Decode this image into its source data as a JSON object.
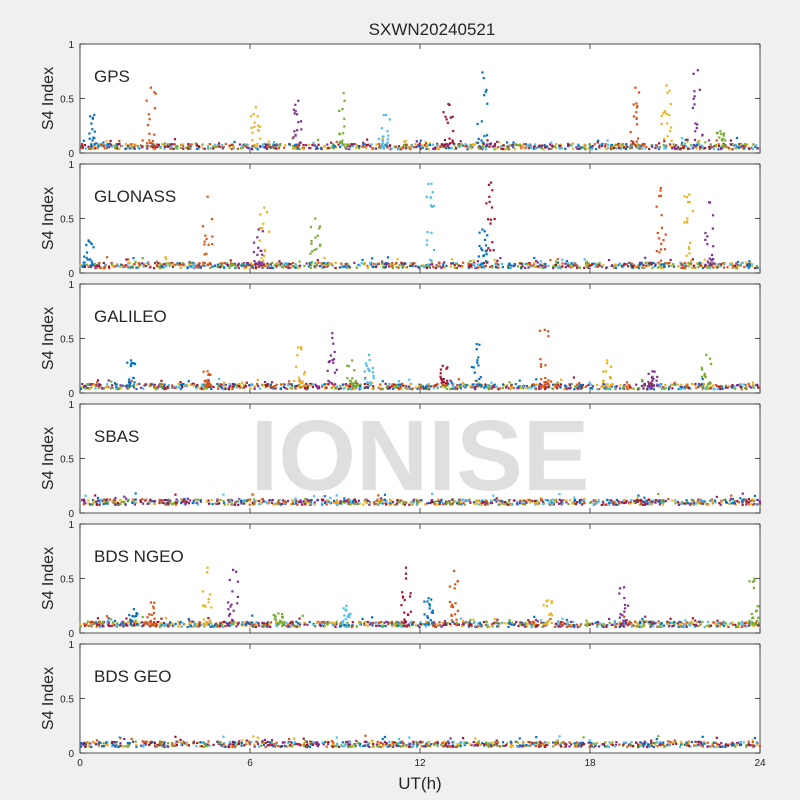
{
  "chart_data": {
    "type": "scatter",
    "title": "SXWN20240521",
    "watermark": "IONISE",
    "xlabel": "UT(h)",
    "ylabel": "S4 Index",
    "xlim": [
      0,
      24
    ],
    "ylim": [
      0,
      1
    ],
    "x_ticks": [
      0,
      6,
      12,
      18,
      24
    ],
    "y_ticks": [
      0,
      0.5,
      1
    ],
    "y_tick_labels": [
      "0",
      "0.5",
      "1"
    ],
    "grid": false,
    "colors": [
      "#0072bd",
      "#d95319",
      "#edb120",
      "#7e2f8e",
      "#77ac30",
      "#4dbeee",
      "#a2142f"
    ],
    "panels": [
      {
        "label": "GPS",
        "baseline": 0.06,
        "spikes": [
          [
            0.5,
            0.35
          ],
          [
            2.5,
            0.6
          ],
          [
            6.2,
            0.42
          ],
          [
            7.7,
            0.48
          ],
          [
            9.3,
            0.55
          ],
          [
            10.8,
            0.35
          ],
          [
            13,
            0.45
          ],
          [
            14.2,
            0.74
          ],
          [
            19.6,
            0.6
          ],
          [
            20.7,
            0.62
          ],
          [
            21.8,
            0.76
          ],
          [
            22.6,
            0.2
          ]
        ]
      },
      {
        "label": "GLONASS",
        "baseline": 0.07,
        "spikes": [
          [
            0.3,
            0.3
          ],
          [
            4.5,
            0.7
          ],
          [
            6.5,
            0.6
          ],
          [
            6.3,
            0.4
          ],
          [
            8.3,
            0.5
          ],
          [
            12.4,
            0.82
          ],
          [
            14.5,
            0.83
          ],
          [
            14.2,
            0.4
          ],
          [
            20.5,
            0.78
          ],
          [
            21.5,
            0.72
          ],
          [
            22.2,
            0.65
          ]
        ]
      },
      {
        "label": "GALILEO",
        "baseline": 0.06,
        "spikes": [
          [
            1.8,
            0.3
          ],
          [
            4.5,
            0.2
          ],
          [
            7.8,
            0.42
          ],
          [
            8.9,
            0.55
          ],
          [
            9.6,
            0.3
          ],
          [
            10.2,
            0.35
          ],
          [
            12.8,
            0.25
          ],
          [
            14,
            0.45
          ],
          [
            16.4,
            0.58
          ],
          [
            18.6,
            0.3
          ],
          [
            20.2,
            0.2
          ],
          [
            22.1,
            0.35
          ]
        ]
      },
      {
        "label": "SBAS",
        "baseline": 0.1,
        "spikes": []
      },
      {
        "label": "BDS NGEO",
        "baseline": 0.08,
        "spikes": [
          [
            1.9,
            0.22
          ],
          [
            2.5,
            0.28
          ],
          [
            4.5,
            0.6
          ],
          [
            5.4,
            0.58
          ],
          [
            7,
            0.18
          ],
          [
            9.4,
            0.25
          ],
          [
            11.5,
            0.6
          ],
          [
            12.3,
            0.32
          ],
          [
            13.2,
            0.57
          ],
          [
            16.5,
            0.3
          ],
          [
            19.2,
            0.42
          ],
          [
            23.8,
            0.5
          ]
        ]
      },
      {
        "label": "BDS GEO",
        "baseline": 0.08,
        "spikes": []
      }
    ]
  }
}
